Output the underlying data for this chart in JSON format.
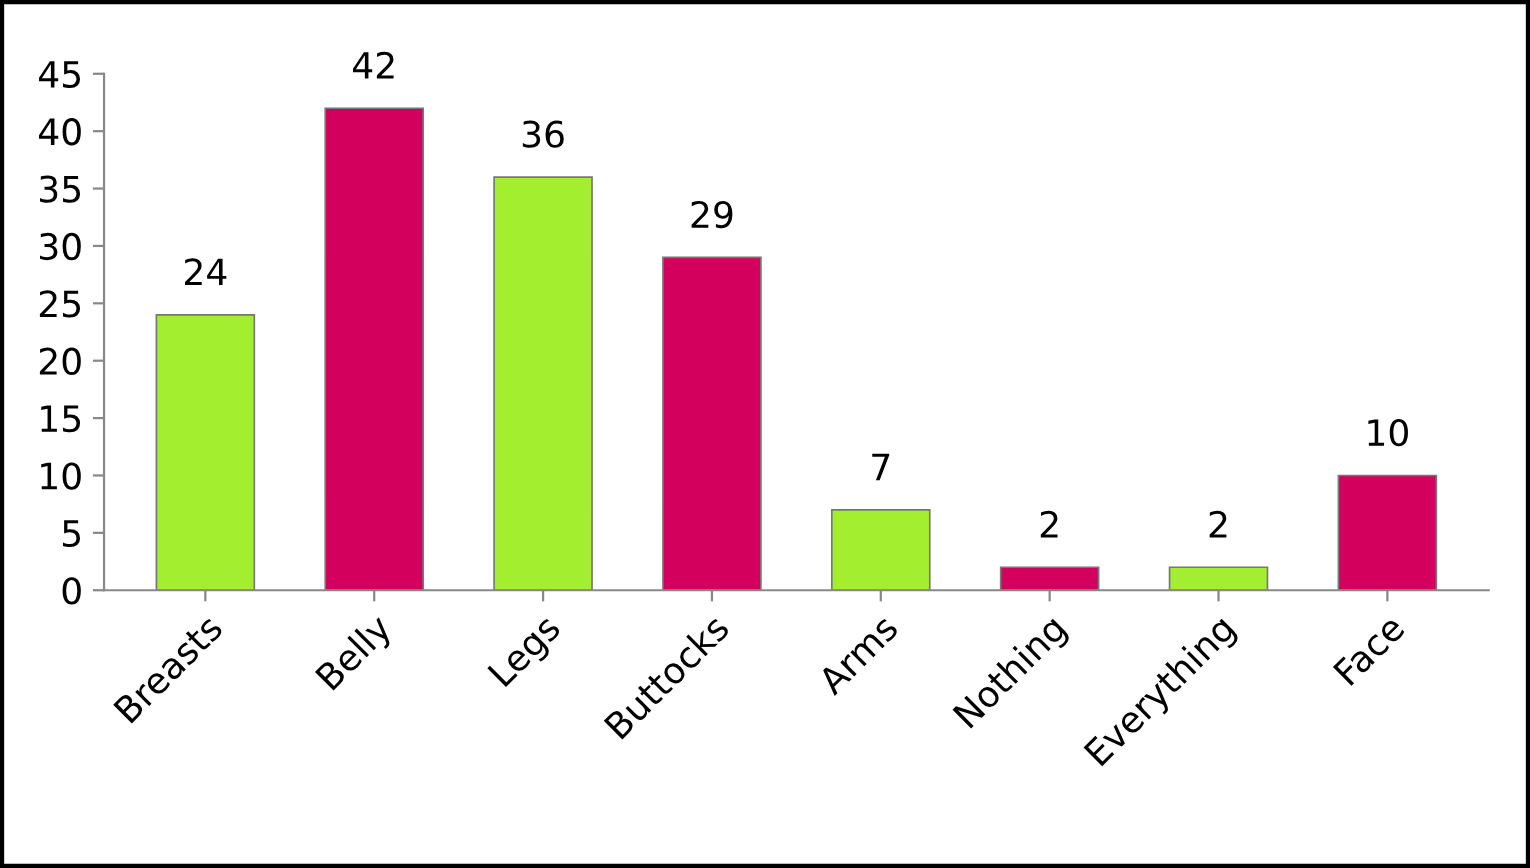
{
  "chart_data": {
    "type": "bar",
    "categories": [
      "Breasts",
      "Belly",
      "Legs",
      "Buttocks",
      "Arms",
      "Nothing",
      "Everything",
      "Face"
    ],
    "values": [
      24,
      42,
      36,
      29,
      7,
      2,
      2,
      10
    ],
    "colors": [
      "#a3ee2e",
      "#d4005d",
      "#a3ee2e",
      "#d4005d",
      "#a3ee2e",
      "#d4005d",
      "#a3ee2e",
      "#d4005d"
    ],
    "ylim": [
      0,
      45
    ],
    "yticks": [
      0,
      5,
      10,
      15,
      20,
      25,
      30,
      35,
      40,
      45
    ],
    "data_labels": true,
    "grid": false,
    "legend": false
  }
}
